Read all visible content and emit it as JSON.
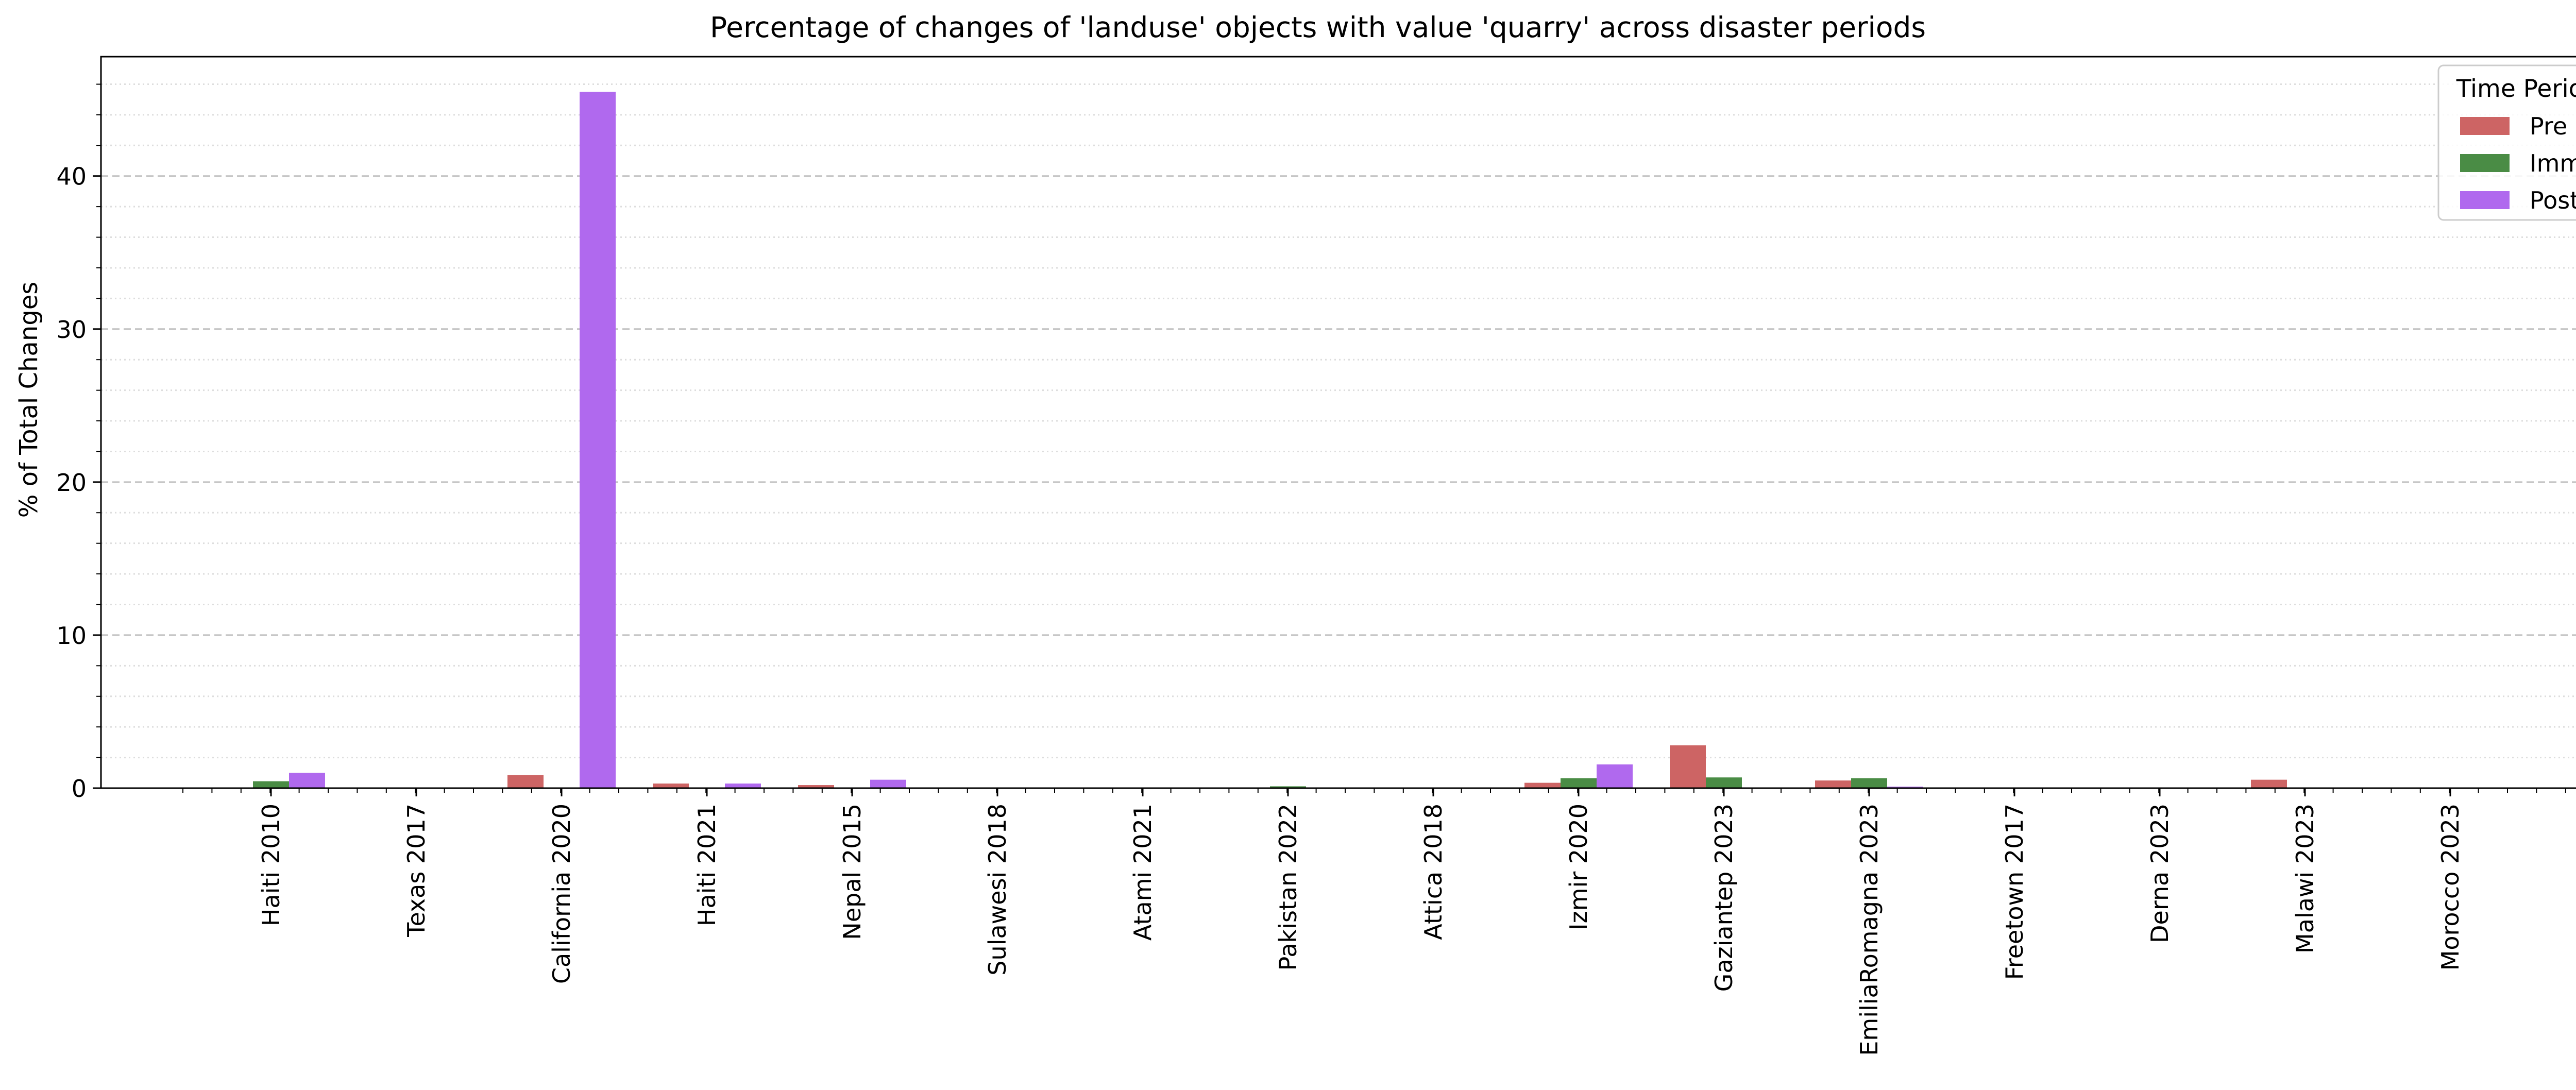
{
  "chart_data": {
    "type": "bar",
    "title": "Percentage of changes of 'landuse' objects with value 'quarry' across disaster periods",
    "xlabel": "",
    "ylabel": "% of Total Changes",
    "ylim": [
      0,
      47.8
    ],
    "yticks": [
      0,
      10,
      20,
      30,
      40
    ],
    "grid": true,
    "legend": {
      "title": "Time Period",
      "placement": "top-right"
    },
    "categories": [
      "Haiti 2010",
      "Texas 2017",
      "California 2020",
      "Haiti 2021",
      "Nepal 2015",
      "Sulawesi 2018",
      "Atami 2021",
      "Pakistan 2022",
      "Attica 2018",
      "Izmir 2020",
      "Gaziantep 2023",
      "EmiliaRomagna 2023",
      "Freetown 2017",
      "Derna 2023",
      "Malawi 2023",
      "Morocco 2023"
    ],
    "series": [
      {
        "name": "Pre",
        "color": "#cd6464",
        "values": [
          0.02,
          0,
          0.85,
          0.3,
          0.2,
          0,
          0,
          0,
          0,
          0.35,
          2.8,
          0.5,
          0,
          0,
          0.55,
          0
        ]
      },
      {
        "name": "Imm",
        "color": "#4a8c45",
        "values": [
          0.45,
          0,
          0.02,
          0.02,
          0.02,
          0,
          0,
          0.12,
          0,
          0.65,
          0.7,
          0.65,
          0,
          0,
          0.05,
          0.05
        ]
      },
      {
        "name": "Post",
        "color": "#b069ee",
        "values": [
          1.0,
          0,
          45.5,
          0.3,
          0.55,
          0,
          0,
          0,
          0,
          1.55,
          0.05,
          0.1,
          0,
          0,
          0.05,
          0
        ]
      }
    ]
  }
}
